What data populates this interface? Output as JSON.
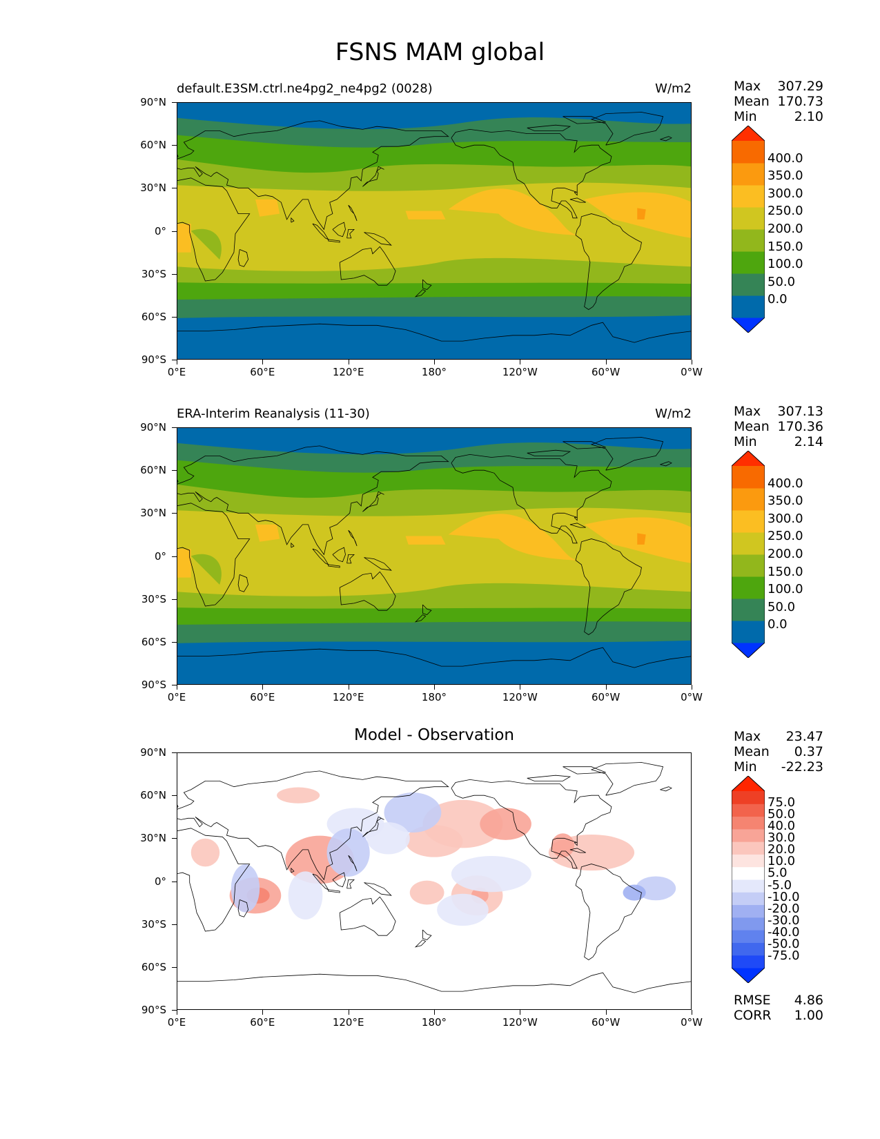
{
  "title": "FSNS MAM global",
  "axes": {
    "lat_labels": [
      "90°N",
      "60°N",
      "30°N",
      "0°",
      "30°S",
      "60°S",
      "90°S"
    ],
    "lon_labels": [
      "0°E",
      "60°E",
      "120°E",
      "180°",
      "120°W",
      "60°W",
      "0°W"
    ]
  },
  "panels": [
    {
      "title_left": "default.E3SM.ctrl.ne4pg2_ne4pg2 (0028)",
      "units": "W/m2",
      "stats": [
        {
          "label": "Max",
          "value": "307.29"
        },
        {
          "label": "Mean",
          "value": "170.73"
        },
        {
          "label": "Min",
          "value": "2.10"
        }
      ],
      "colorbar": {
        "ticks": [
          "400.0",
          "350.0",
          "300.0",
          "250.0",
          "200.0",
          "150.0",
          "100.0",
          "50.0",
          "0.0"
        ],
        "colors": [
          "#0033ff",
          "#006aab",
          "#358456",
          "#4ea60e",
          "#92b71c",
          "#d0c620",
          "#fbbe22",
          "#fb9a0f",
          "#f86a00",
          "#ff2f00"
        ]
      }
    },
    {
      "title_left": "ERA-Interim Reanalysis (11-30)",
      "units": "W/m2",
      "stats": [
        {
          "label": "Max",
          "value": "307.13"
        },
        {
          "label": "Mean",
          "value": "170.36"
        },
        {
          "label": "Min",
          "value": "2.14"
        }
      ],
      "colorbar": {
        "ticks": [
          "400.0",
          "350.0",
          "300.0",
          "250.0",
          "200.0",
          "150.0",
          "100.0",
          "50.0",
          "0.0"
        ],
        "colors": [
          "#0033ff",
          "#006aab",
          "#358456",
          "#4ea60e",
          "#92b71c",
          "#d0c620",
          "#fbbe22",
          "#fb9a0f",
          "#f86a00",
          "#ff2f00"
        ]
      }
    },
    {
      "title_center": "Model - Observation",
      "stats": [
        {
          "label": "Max",
          "value": "23.47"
        },
        {
          "label": "Mean",
          "value": "0.37"
        },
        {
          "label": "Min",
          "value": "-22.23"
        }
      ],
      "colorbar": {
        "ticks": [
          "75.0",
          "50.0",
          "40.0",
          "30.0",
          "20.0",
          "10.0",
          "5.0",
          "-5.0",
          "-10.0",
          "-20.0",
          "-30.0",
          "-40.0",
          "-50.0",
          "-75.0"
        ],
        "colors": [
          "#0033ff",
          "#1f4af7",
          "#4068ee",
          "#6082ee",
          "#8099ee",
          "#a0b0f2",
          "#c4cdf6",
          "#e4e8fb",
          "#ffffff",
          "#fde4e0",
          "#fbc6bd",
          "#f8a497",
          "#f58471",
          "#f2634c",
          "#ee4025",
          "#ff2600"
        ]
      },
      "metrics": [
        {
          "label": "RMSE",
          "value": "4.86"
        },
        {
          "label": "CORR",
          "value": "1.00"
        }
      ]
    }
  ]
}
